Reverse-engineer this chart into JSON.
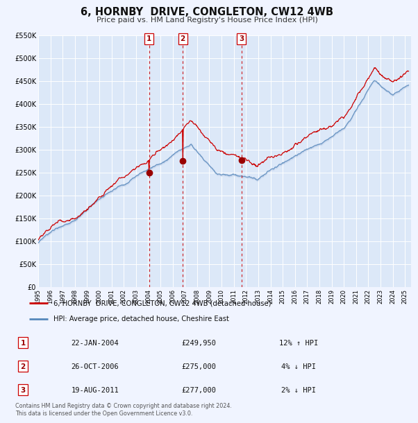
{
  "title": "6, HORNBY  DRIVE, CONGLETON, CW12 4WB",
  "subtitle": "Price paid vs. HM Land Registry's House Price Index (HPI)",
  "red_label": "6, HORNBY  DRIVE, CONGLETON, CW12 4WB (detached house)",
  "blue_label": "HPI: Average price, detached house, Cheshire East",
  "sale_events": [
    {
      "num": 1,
      "date": "22-JAN-2004",
      "price": "£249,950",
      "hpi": "12% ↑ HPI",
      "year": 2004.06
    },
    {
      "num": 2,
      "date": "26-OCT-2006",
      "price": "£275,000",
      "hpi": "4% ↓ HPI",
      "year": 2006.82
    },
    {
      "num": 3,
      "date": "19-AUG-2011",
      "price": "£277,000",
      "hpi": "2% ↓ HPI",
      "year": 2011.63
    }
  ],
  "sale_prices": [
    249950,
    275000,
    277000
  ],
  "footer": "Contains HM Land Registry data © Crown copyright and database right 2024.\nThis data is licensed under the Open Government Licence v3.0.",
  "ylim": [
    0,
    550000
  ],
  "xlim_start": 1995.0,
  "xlim_end": 2025.5,
  "background_color": "#f0f4ff",
  "plot_bg": "#dce8f8",
  "grid_color": "#ffffff",
  "red_line_color": "#cc0000",
  "blue_line_color": "#5588bb",
  "blue_fill_color": "#aabbdd",
  "dashed_line_color": "#cc0000",
  "legend_border_color": "#aaaaaa",
  "sale_box_color": "#cc0000"
}
